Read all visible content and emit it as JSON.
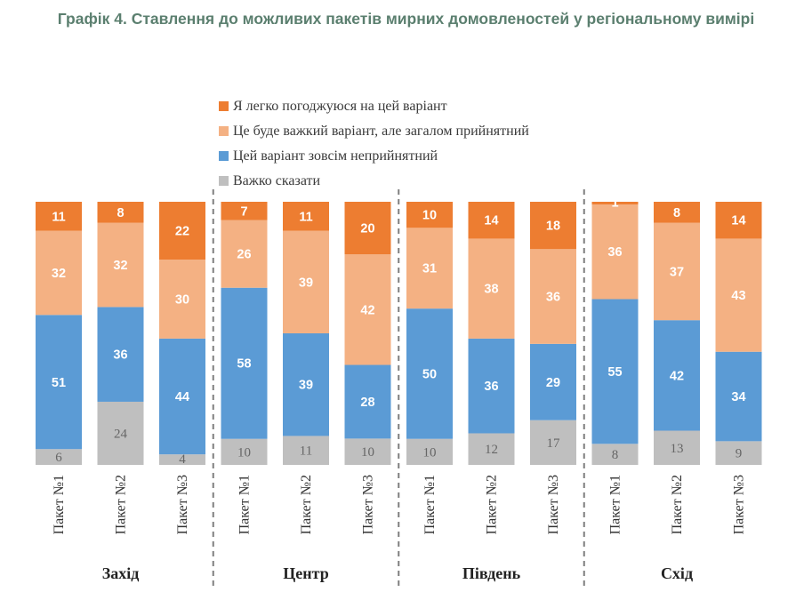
{
  "chart_data": {
    "type": "bar",
    "stacked": true,
    "normalized_percent": true,
    "title": "Графік 4. Ставлення до можливих пакетів мирних домовленостей у регіональному вимірі",
    "legend": {
      "placement": "top-left",
      "entries": [
        {
          "name": "Я легко погоджуюся на цей варіант",
          "color": "#ed7d31"
        },
        {
          "name": "Це буде важкий варіант, але загалом прийнятний",
          "color": "#f4b183"
        },
        {
          "name": "Цей варіант зовсім неприйнятний",
          "color": "#5b9bd5"
        },
        {
          "name": "Важко сказати",
          "color": "#bfbfbf"
        }
      ]
    },
    "stack_order_bottom_to_top": [
      "Важко сказати",
      "Цей варіант зовсім неприйнятний",
      "Це буде важкий варіант, але загалом прийнятний",
      "Я легко погоджуюся на цей варіант"
    ],
    "groups": [
      {
        "name": "Захід",
        "bars": [
          {
            "category": "Пакет №1",
            "values": {
              "easy": 11,
              "hard": 32,
              "unacceptable": 51,
              "dk": 6
            }
          },
          {
            "category": "Пакет №2",
            "values": {
              "easy": 8,
              "hard": 32,
              "unacceptable": 36,
              "dk": 24
            }
          },
          {
            "category": "Пакет №3",
            "values": {
              "easy": 22,
              "hard": 30,
              "unacceptable": 44,
              "dk": 4
            }
          }
        ]
      },
      {
        "name": "Центр",
        "bars": [
          {
            "category": "Пакет №1",
            "values": {
              "easy": 7,
              "hard": 26,
              "unacceptable": 58,
              "dk": 10
            }
          },
          {
            "category": "Пакет №2",
            "values": {
              "easy": 11,
              "hard": 39,
              "unacceptable": 39,
              "dk": 11
            }
          },
          {
            "category": "Пакет №3",
            "values": {
              "easy": 20,
              "hard": 42,
              "unacceptable": 28,
              "dk": 10
            }
          }
        ]
      },
      {
        "name": "Південь",
        "bars": [
          {
            "category": "Пакет №1",
            "values": {
              "easy": 10,
              "hard": 31,
              "unacceptable": 50,
              "dk": 10
            }
          },
          {
            "category": "Пакет №2",
            "values": {
              "easy": 14,
              "hard": 38,
              "unacceptable": 36,
              "dk": 12
            }
          },
          {
            "category": "Пакет №3",
            "values": {
              "easy": 18,
              "hard": 36,
              "unacceptable": 29,
              "dk": 17
            }
          }
        ]
      },
      {
        "name": "Схід",
        "bars": [
          {
            "category": "Пакет №1",
            "values": {
              "easy": 1,
              "hard": 36,
              "unacceptable": 55,
              "dk": 8
            }
          },
          {
            "category": "Пакет №2",
            "values": {
              "easy": 8,
              "hard": 37,
              "unacceptable": 42,
              "dk": 13
            }
          },
          {
            "category": "Пакет №3",
            "values": {
              "easy": 14,
              "hard": 43,
              "unacceptable": 34,
              "dk": 9
            }
          }
        ]
      }
    ],
    "group_separators": "dashed",
    "grid": false
  }
}
